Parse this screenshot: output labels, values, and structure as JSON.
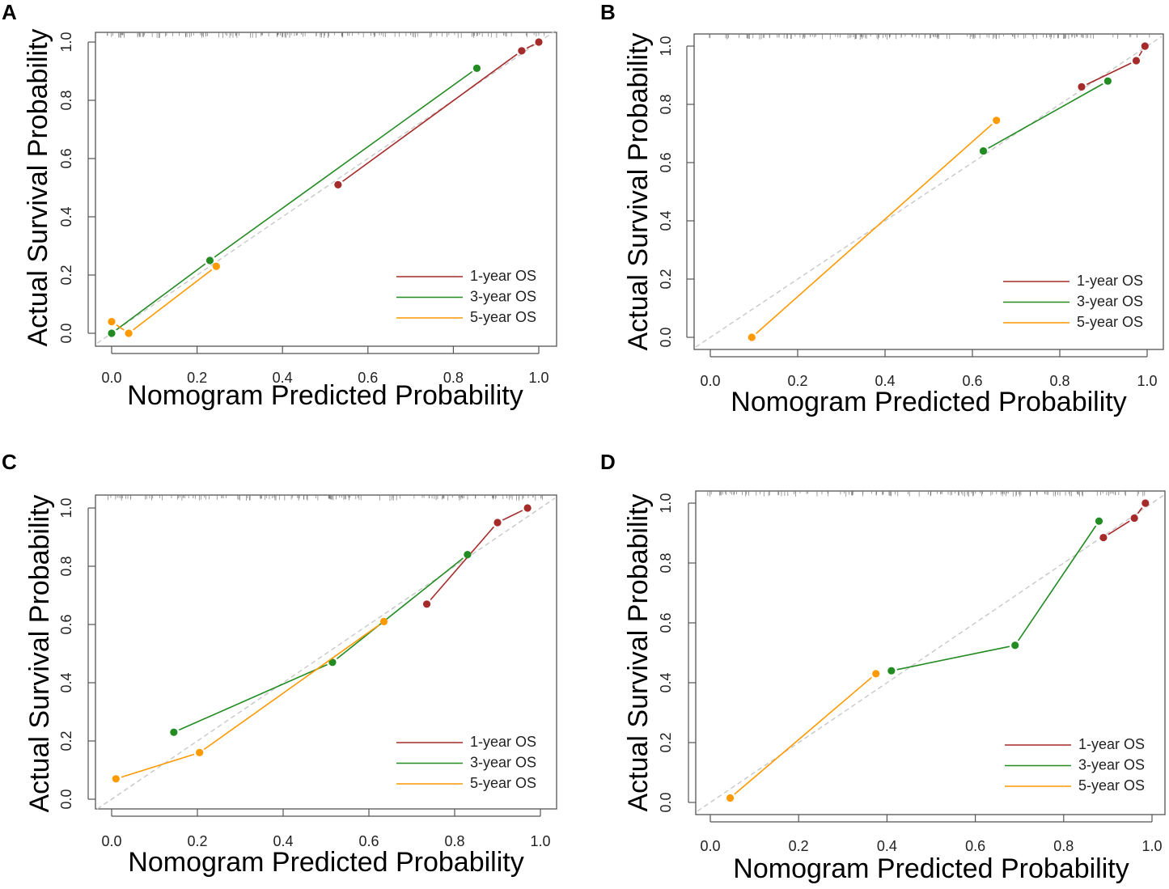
{
  "colors": {
    "one_year": "#a52a2a",
    "three_year": "#228b22",
    "five_year": "#ff9900",
    "reference": "#c8c8c8",
    "axis": "#555555",
    "text": "#000000"
  },
  "chart_data": [
    {
      "panel_label": "A",
      "type": "line",
      "xlabel": "Nomogram Predicted Probability",
      "ylabel": "Actual Survival Probability",
      "xlim": [
        0,
        1
      ],
      "ylim": [
        0,
        1
      ],
      "x_ticks": [
        "0.0",
        "0.2",
        "0.4",
        "0.6",
        "0.8",
        "1.0"
      ],
      "y_ticks": [
        "0.0",
        "0.2",
        "0.4",
        "0.6",
        "0.8",
        "1.0"
      ],
      "reference_line": "diagonal",
      "legend": [
        "1-year OS",
        "3-year OS",
        "5-year OS"
      ],
      "legend_position": "bottom-right",
      "series": [
        {
          "name": "1-year OS",
          "points": [
            [
              0.53,
              0.51
            ],
            [
              0.96,
              0.97
            ],
            [
              1.0,
              1.0
            ]
          ]
        },
        {
          "name": "3-year OS",
          "points": [
            [
              0.0,
              0.0
            ],
            [
              0.23,
              0.25
            ],
            [
              0.855,
              0.91
            ]
          ]
        },
        {
          "name": "5-year OS",
          "points": [
            [
              0.0,
              0.04
            ],
            [
              0.04,
              0.0
            ],
            [
              0.245,
              0.23
            ]
          ]
        }
      ]
    },
    {
      "panel_label": "B",
      "type": "line",
      "xlabel": "Nomogram Predicted Probability",
      "ylabel": "Actual Survival Probability",
      "xlim": [
        0,
        1
      ],
      "ylim": [
        0,
        1
      ],
      "x_ticks": [
        "0.0",
        "0.2",
        "0.4",
        "0.6",
        "0.8",
        "1.0"
      ],
      "y_ticks": [
        "0.0",
        "0.2",
        "0.4",
        "0.6",
        "0.8",
        "1.0"
      ],
      "reference_line": "diagonal",
      "legend": [
        "1-year OS",
        "3-year OS",
        "5-year OS"
      ],
      "legend_position": "bottom-right",
      "series": [
        {
          "name": "1-year OS",
          "points": [
            [
              0.85,
              0.86
            ],
            [
              0.975,
              0.95
            ],
            [
              0.995,
              1.0
            ]
          ]
        },
        {
          "name": "3-year OS",
          "points": [
            [
              0.625,
              0.64
            ],
            [
              0.91,
              0.88
            ]
          ]
        },
        {
          "name": "5-year OS",
          "points": [
            [
              0.095,
              0.0
            ],
            [
              0.655,
              0.745
            ]
          ]
        }
      ]
    },
    {
      "panel_label": "C",
      "type": "line",
      "xlabel": "Nomogram Predicted Probability",
      "ylabel": "Actual Survival Probability",
      "xlim": [
        0,
        1
      ],
      "ylim": [
        0,
        1
      ],
      "x_ticks": [
        "0.0",
        "0.2",
        "0.4",
        "0.6",
        "0.8",
        "1.0"
      ],
      "y_ticks": [
        "0.0",
        "0.2",
        "0.4",
        "0.6",
        "0.8",
        "1.0"
      ],
      "reference_line": "diagonal",
      "legend": [
        "1-year OS",
        "3-year OS",
        "5-year OS"
      ],
      "legend_position": "bottom-right",
      "series": [
        {
          "name": "1-year OS",
          "points": [
            [
              0.735,
              0.67
            ],
            [
              0.9,
              0.95
            ],
            [
              0.97,
              1.0
            ]
          ]
        },
        {
          "name": "3-year OS",
          "points": [
            [
              0.145,
              0.23
            ],
            [
              0.515,
              0.47
            ],
            [
              0.83,
              0.84
            ]
          ]
        },
        {
          "name": "5-year OS",
          "points": [
            [
              0.01,
              0.07
            ],
            [
              0.205,
              0.16
            ],
            [
              0.635,
              0.61
            ]
          ]
        }
      ]
    },
    {
      "panel_label": "D",
      "type": "line",
      "xlabel": "Nomogram Predicted Probability",
      "ylabel": "Actual Survival Probability",
      "xlim": [
        0,
        1
      ],
      "ylim": [
        0,
        1
      ],
      "x_ticks": [
        "0.0",
        "0.2",
        "0.4",
        "0.6",
        "0.8",
        "1.0"
      ],
      "y_ticks": [
        "0.0",
        "0.2",
        "0.4",
        "0.6",
        "0.8",
        "1.0"
      ],
      "reference_line": "diagonal",
      "legend": [
        "1-year OS",
        "3-year OS",
        "5-year OS"
      ],
      "legend_position": "bottom-right",
      "series": [
        {
          "name": "1-year OS",
          "points": [
            [
              0.89,
              0.885
            ],
            [
              0.96,
              0.95
            ],
            [
              0.985,
              1.0
            ]
          ]
        },
        {
          "name": "3-year OS",
          "points": [
            [
              0.41,
              0.44
            ],
            [
              0.69,
              0.525
            ],
            [
              0.88,
              0.94
            ]
          ]
        },
        {
          "name": "5-year OS",
          "points": [
            [
              0.045,
              0.015
            ],
            [
              0.375,
              0.43
            ]
          ]
        }
      ]
    }
  ]
}
